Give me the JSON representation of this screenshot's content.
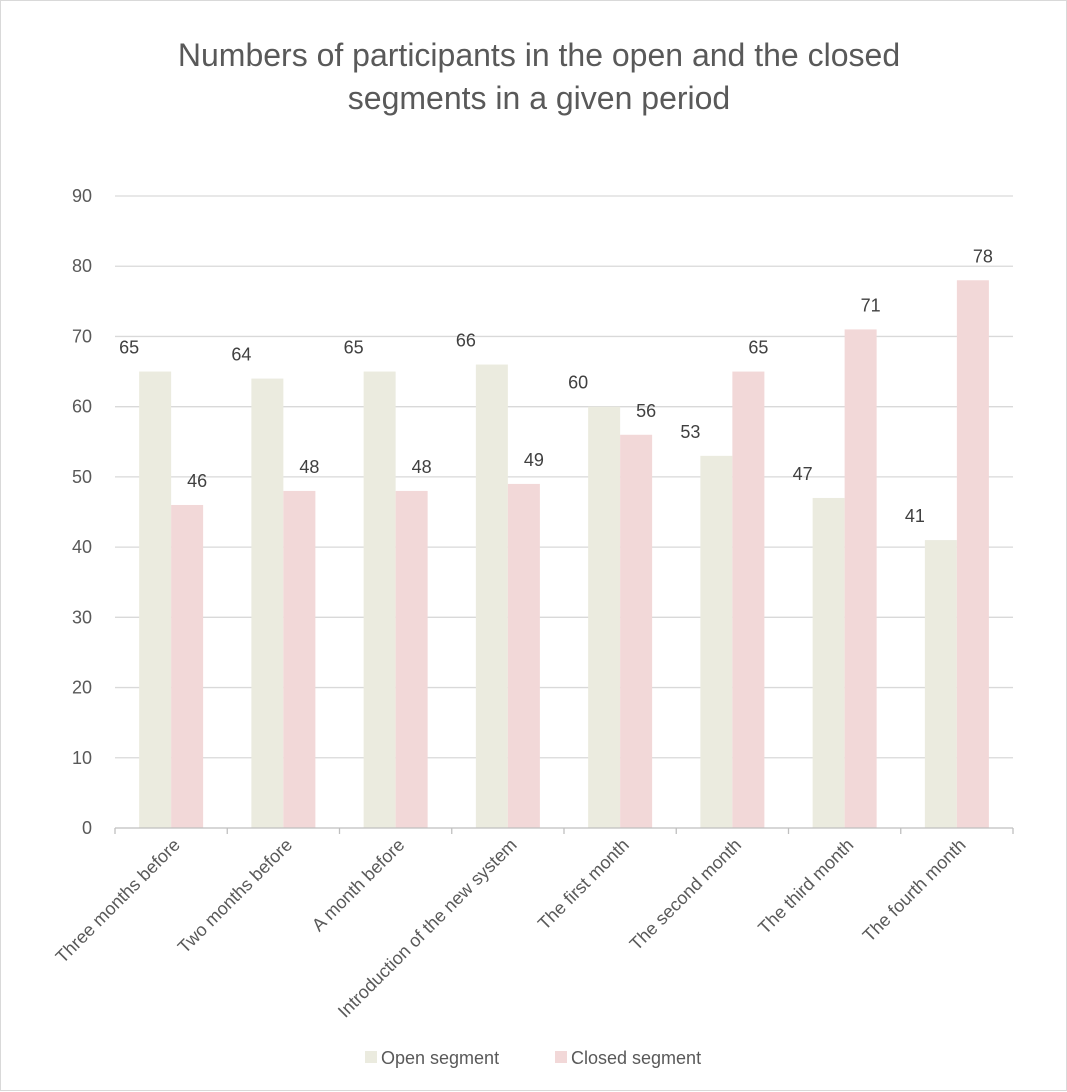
{
  "chart_data": {
    "type": "bar",
    "title": [
      "Numbers of participants in the open and the closed",
      "segments in a given period"
    ],
    "categories": [
      "Three months before",
      "Two months before",
      "A month before",
      "Introduction of the new system",
      "The first month",
      "The second month",
      "The third month",
      "The fourth month"
    ],
    "series": [
      {
        "name": "Open segment",
        "color": "#ebebdf",
        "values": [
          65,
          64,
          65,
          66,
          60,
          53,
          47,
          41
        ]
      },
      {
        "name": "Closed segment",
        "color": "#f2d8d8",
        "values": [
          46,
          48,
          48,
          49,
          56,
          65,
          71,
          78
        ]
      }
    ],
    "ylim": [
      0,
      90
    ],
    "yticks": [
      0,
      10,
      20,
      30,
      40,
      50,
      60,
      70,
      80,
      90
    ],
    "grid": true,
    "legend": "bottom",
    "xlabel": "",
    "ylabel": ""
  }
}
